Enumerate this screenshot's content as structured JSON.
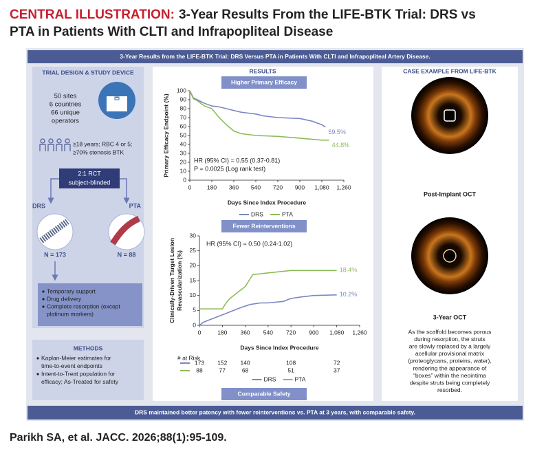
{
  "header": {
    "label": "CENTRAL ILLUSTRATION:",
    "title": [
      "3-Year Results From the LIFE-BTK Trial: DRS vs",
      "PTA in Patients With CLTI and Infrapopliteal Disease"
    ]
  },
  "banner": "3-Year Results from the LIFE-BTK Trial: DRS Versus PTA in Patients With CLTI and Infrapopliteal Artery Disease.",
  "left": {
    "heading": "TRIAL DESIGN & STUDY DEVICE",
    "sites": [
      "50 sites",
      "6 countries",
      "66 unique",
      "operators"
    ],
    "criteria": [
      "≥18 years; RBC 4 or 5;",
      "≥70% stenosis BTK"
    ],
    "rct": [
      "2:1 RCT",
      "subject-blinded"
    ],
    "arms": [
      {
        "name": "DRS",
        "n": "N = 173"
      },
      {
        "name": "PTA",
        "n": "N = 88"
      }
    ],
    "features": [
      [
        "Temporary support"
      ],
      [
        "Drug delivery"
      ],
      [
        "Complete resorption (except",
        "platinum markers)"
      ]
    ],
    "methods": {
      "heading": "METHODS",
      "items": [
        [
          "Kaplan-Meier estimates for",
          "time-to-event endpoints"
        ],
        [
          "Intent-to-Treat population for",
          "efficacy; As-Treated for safety"
        ]
      ]
    }
  },
  "results": {
    "heading": "RESULTS",
    "banners": [
      "Higher Primary Efficacy",
      "Fewer Reinterventions",
      "Comparable Safety"
    ]
  },
  "chart_data": [
    {
      "type": "line",
      "step": true,
      "ylabel": [
        "Primary Efficacy Endpoint (%)"
      ],
      "xlabel": "Days Since Index Procedure",
      "annotations": [
        "HR (95% CI) = 0.55 (0.37-0.81)",
        "P = 0.0025 (Log rank test)"
      ],
      "xlim": [
        0,
        1260
      ],
      "ylim": [
        0,
        100
      ],
      "xticks": [
        0,
        180,
        360,
        540,
        720,
        900,
        {
          "value": 1080,
          "label": "1,080"
        },
        {
          "value": 1260,
          "label": "1,260"
        }
      ],
      "yticks": [
        0,
        10,
        20,
        30,
        40,
        50,
        60,
        70,
        80,
        90,
        100
      ],
      "series": [
        {
          "name": "DRS",
          "color": "#7b86c2",
          "end_label": "59.5%",
          "x": [
            0,
            30,
            60,
            90,
            120,
            180,
            240,
            300,
            360,
            420,
            480,
            540,
            600,
            720,
            900,
            1000,
            1080,
            1110
          ],
          "values": [
            100,
            92,
            90,
            88,
            86,
            83,
            82,
            80,
            78,
            76,
            75,
            74,
            72,
            70,
            69,
            66,
            62,
            59.5
          ]
        },
        {
          "name": "PTA",
          "color": "#8dbb5a",
          "end_label": "44.8%",
          "x": [
            0,
            30,
            60,
            90,
            120,
            180,
            240,
            300,
            360,
            420,
            540,
            720,
            900,
            1080,
            1140
          ],
          "values": [
            100,
            91,
            89,
            86,
            83,
            80,
            70,
            62,
            55,
            52,
            50,
            49,
            47,
            44.8,
            44.8
          ]
        }
      ],
      "legend": "bottom"
    },
    {
      "type": "line",
      "step": true,
      "ylabel": [
        "Clinically-Driven Target Lesion",
        "Revascularization (%)"
      ],
      "xlabel": "Days Since Index Procedure",
      "annotations": [
        "HR (95% CI) = 0.50 (0.24-1.02)"
      ],
      "xlim": [
        0,
        1260
      ],
      "ylim": [
        0,
        30
      ],
      "xticks": [
        0,
        180,
        360,
        540,
        720,
        900,
        {
          "value": 1080,
          "label": "1,080"
        },
        {
          "value": 1260,
          "label": "1,260"
        }
      ],
      "yticks": [
        0,
        5,
        10,
        15,
        20,
        25,
        30
      ],
      "at_risk_label": "# at Risk",
      "series": [
        {
          "name": "DRS",
          "color": "#7b86c2",
          "end_label": "10.2%",
          "x": [
            0,
            30,
            90,
            150,
            210,
            270,
            330,
            400,
            480,
            540,
            660,
            720,
            800,
            900,
            1080
          ],
          "values": [
            0,
            1,
            2,
            3,
            4,
            5,
            6,
            7,
            7.5,
            7.5,
            8,
            9,
            9.5,
            10,
            10.2
          ],
          "at_risk": [
            173,
            152,
            140,
            null,
            108,
            null,
            72,
            null
          ]
        },
        {
          "name": "PTA",
          "color": "#8dbb5a",
          "end_label": "18.4%",
          "x": [
            0,
            180,
            210,
            240,
            300,
            360,
            390,
            420,
            720,
            1080
          ],
          "values": [
            5.5,
            5.5,
            7.5,
            9,
            11,
            13,
            15,
            17,
            18.4,
            18.4
          ],
          "at_risk": [
            88,
            77,
            68,
            null,
            51,
            null,
            37,
            null
          ]
        }
      ],
      "legend": "bottom"
    }
  ],
  "right": {
    "heading": "CASE EXAMPLE FROM LIFE-BTK",
    "captions": [
      "Post-Implant OCT",
      "3-Year OCT"
    ],
    "paragraph": [
      "As the scaffold becomes porous",
      "during resorption, the struts",
      "are slowly replaced by a largely",
      "acellular provisional matrix",
      "(proteoglycans, proteins, water),",
      "rendering the appearance of",
      "“boxes” within the neointima",
      "despite struts being completely",
      "resorbed."
    ]
  },
  "footer": "DRS maintained better patency with fewer reinterventions vs. PTA at 3 years, with comparable safety.",
  "citation": "Parikh SA, et al. JACC. 2026;88(1):95-109."
}
